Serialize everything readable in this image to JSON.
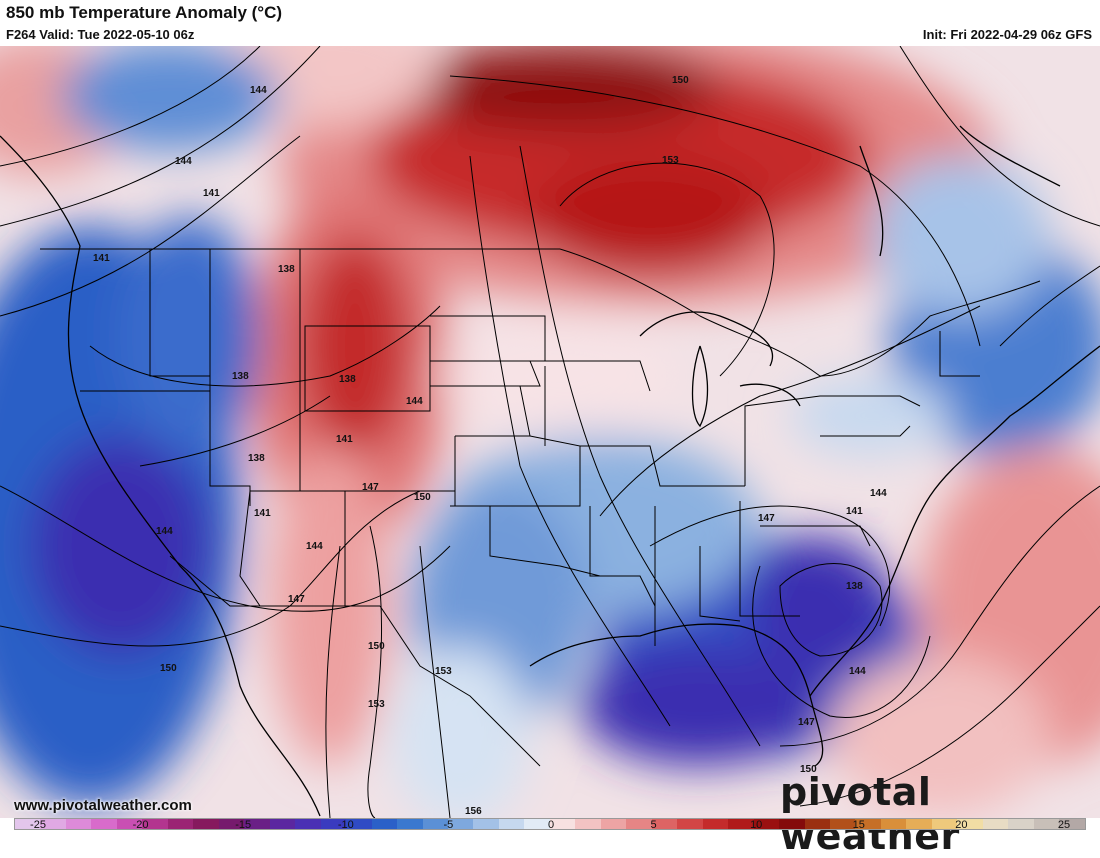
{
  "header": {
    "title": "850 mb Temperature Anomaly (°C)",
    "valid": "F264 Valid: Tue 2022-05-10 06z",
    "init": "Init: Fri 2022-04-29 06z GFS"
  },
  "footer": {
    "website": "www.pivotalweather.com",
    "brand": "pivotal weather"
  },
  "colorbar": {
    "labels": [
      "-25",
      "-20",
      "-15",
      "-10",
      "-5",
      "0",
      "5",
      "10",
      "15",
      "20",
      "25"
    ],
    "colors": [
      "#e3c6ec",
      "#e0a9e4",
      "#dd8ad9",
      "#d86bcb",
      "#c94fb3",
      "#b3358f",
      "#9b2474",
      "#86195e",
      "#761a6d",
      "#6a1f86",
      "#5b27a0",
      "#4a30b4",
      "#3a3bbf",
      "#2f4bc4",
      "#2b60c8",
      "#3a78cf",
      "#5b90d6",
      "#7ea8de",
      "#a3c1e7",
      "#c6d8ef",
      "#e2ebf6",
      "#f7e1e1",
      "#f3c3c3",
      "#eda4a4",
      "#e68585",
      "#dd6464",
      "#d24545",
      "#c42b2b",
      "#b01a1a",
      "#9a1010",
      "#840b0b",
      "#9b2f10",
      "#b2501a",
      "#c66f27",
      "#d98f3a",
      "#e6ad57",
      "#eec97c",
      "#f1dda4",
      "#e8dcc4",
      "#d9d2c8",
      "#c8bfb8",
      "#b3a8a6"
    ]
  },
  "contour_labels": [
    "144",
    "144",
    "141",
    "141",
    "138",
    "138",
    "138",
    "138",
    "141",
    "144",
    "150",
    "153",
    "144",
    "141",
    "144",
    "147",
    "150",
    "147",
    "150",
    "153",
    "153",
    "156",
    "150",
    "147",
    "144",
    "141",
    "138",
    "147",
    "150",
    "144"
  ],
  "map_colors": {
    "cold_deep": "#3b2fb0",
    "cold": "#2c5ec6",
    "cool": "#7aa6dc",
    "neutral": "#eef2f7",
    "warm": "#f0aaaa",
    "hot": "#cf3535",
    "very_hot": "#8e0c0c"
  }
}
